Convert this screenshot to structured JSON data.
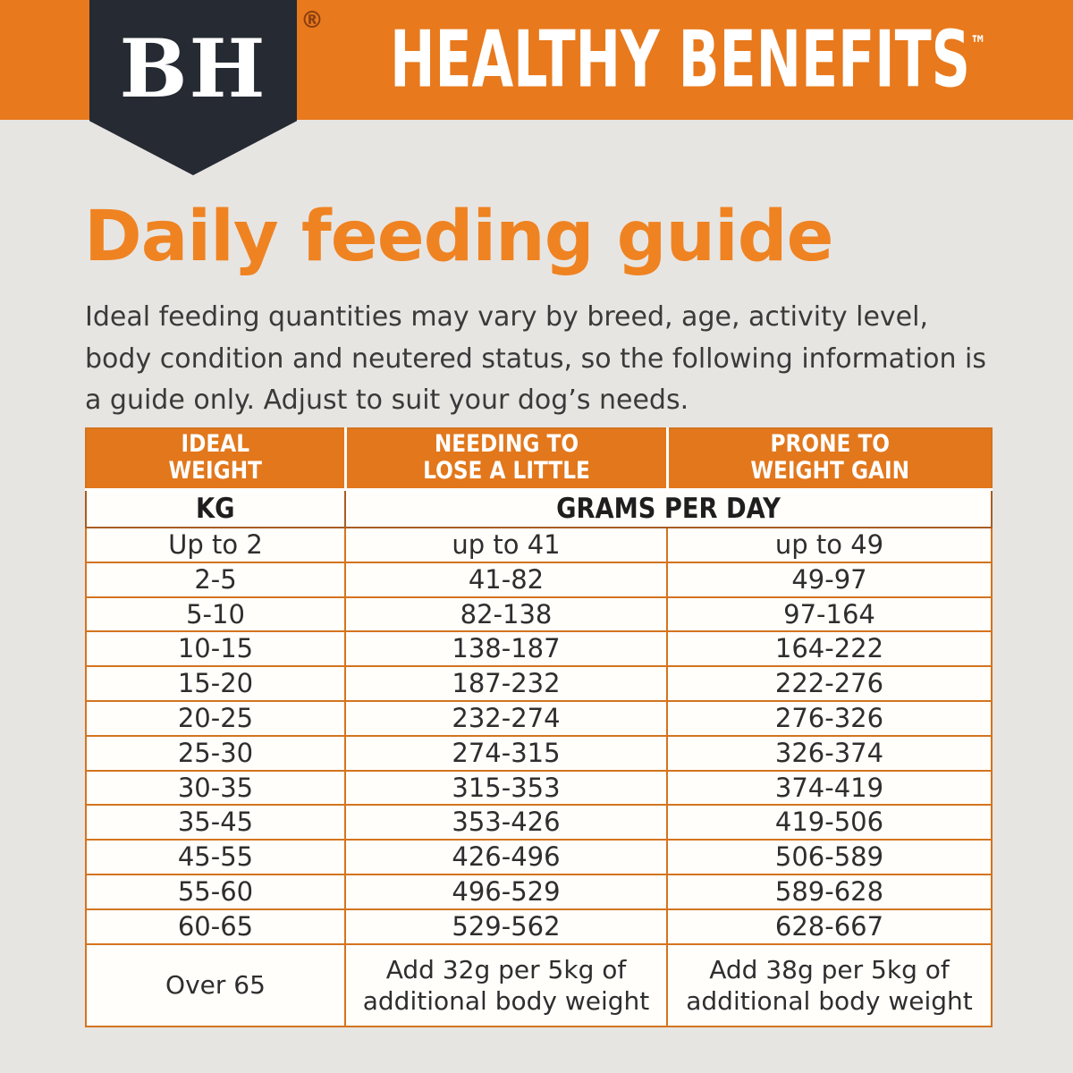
{
  "brand": {
    "logo_text": "BH",
    "registered_mark": "®",
    "product_line": "HEALTHY BENEFITS",
    "trademark_mark": "™"
  },
  "heading": {
    "title": "Daily feeding guide"
  },
  "intro": "Ideal feeding quantities may vary by breed, age, activity level, body condition and neutered status, so the following information is a guide only. Adjust to suit your dog’s needs.",
  "table": {
    "columns": [
      {
        "line1": "IDEAL",
        "line2": "WEIGHT"
      },
      {
        "line1": "NEEDING TO",
        "line2": "LOSE A LITTLE"
      },
      {
        "line1": "PRONE TO",
        "line2": "WEIGHT GAIN"
      }
    ],
    "units_row": {
      "kg": "KG",
      "grams": "GRAMS PER DAY"
    },
    "rows": [
      [
        "Up to 2",
        "up to 41",
        "up to 49"
      ],
      [
        "2-5",
        "41-82",
        "49-97"
      ],
      [
        "5-10",
        "82-138",
        "97-164"
      ],
      [
        "10-15",
        "138-187",
        "164-222"
      ],
      [
        "15-20",
        "187-232",
        "222-276"
      ],
      [
        "20-25",
        "232-274",
        "276-326"
      ],
      [
        "25-30",
        "274-315",
        "326-374"
      ],
      [
        "30-35",
        "315-353",
        "374-419"
      ],
      [
        "35-45",
        "353-426",
        "419-506"
      ],
      [
        "45-55",
        "426-496",
        "506-589"
      ],
      [
        "55-60",
        "496-529",
        "589-628"
      ],
      [
        "60-65",
        "529-562",
        "628-667"
      ],
      [
        "Over 65",
        "Add 32g per 5kg of additional body weight",
        "Add 38g per 5kg of additional body weight"
      ]
    ]
  },
  "colors": {
    "banner_orange": "#E8791D",
    "header_orange": "#E2771C",
    "accent_orange": "#EF8322",
    "table_border": "#D4741E",
    "pennant_dark": "#252A33",
    "registered_mark_color": "#8C3F10",
    "body_text": "#3A3A3A",
    "background": "#E7E5E2"
  }
}
